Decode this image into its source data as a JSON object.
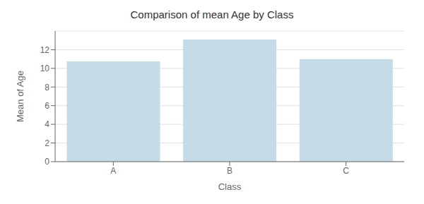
{
  "chart_data": {
    "type": "bar",
    "title": "Comparison of mean Age by Class",
    "xlabel": "Class",
    "ylabel": "Mean of Age",
    "categories": [
      "A",
      "B",
      "C"
    ],
    "values": [
      10.75,
      13.1,
      11.0
    ],
    "color": "#c5dce8",
    "ylim": [
      0,
      14
    ],
    "yticks": [
      0,
      2,
      4,
      6,
      8,
      10,
      12
    ],
    "grid": true
  }
}
